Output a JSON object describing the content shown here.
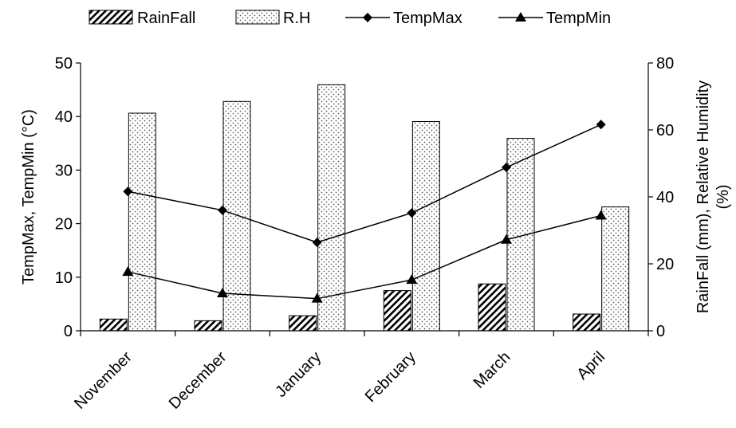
{
  "chart_data": {
    "type": "bar",
    "categories": [
      "November",
      "December",
      "January",
      "February",
      "March",
      "April"
    ],
    "series": [
      {
        "name": "RainFall",
        "kind": "bar",
        "axis": "right",
        "pattern": "diagonal-hatch",
        "values": [
          3.5,
          3,
          4.5,
          12,
          14,
          5
        ]
      },
      {
        "name": "R.H",
        "kind": "bar",
        "axis": "right",
        "pattern": "dotted",
        "values": [
          65,
          68.5,
          73.5,
          62.5,
          57.5,
          37
        ]
      },
      {
        "name": "TempMax",
        "kind": "line",
        "axis": "left",
        "marker": "diamond",
        "values": [
          26,
          22.5,
          16.5,
          22,
          30.5,
          38.5
        ]
      },
      {
        "name": "TempMin",
        "kind": "line",
        "axis": "left",
        "marker": "triangle",
        "values": [
          11,
          7,
          6,
          9.5,
          17,
          21.5
        ]
      }
    ],
    "left_axis": {
      "label": "TempMax, TempMin (°C)",
      "min": 0,
      "max": 50,
      "ticks": [
        0,
        10,
        20,
        30,
        40,
        50
      ]
    },
    "right_axis": {
      "label_line1": "RainFall (mm), Relative Humidity",
      "label_line2": "(%)",
      "min": 0,
      "max": 80,
      "ticks": [
        0,
        20,
        40,
        60,
        80
      ]
    },
    "legend": {
      "position": "top"
    },
    "grid": false
  }
}
